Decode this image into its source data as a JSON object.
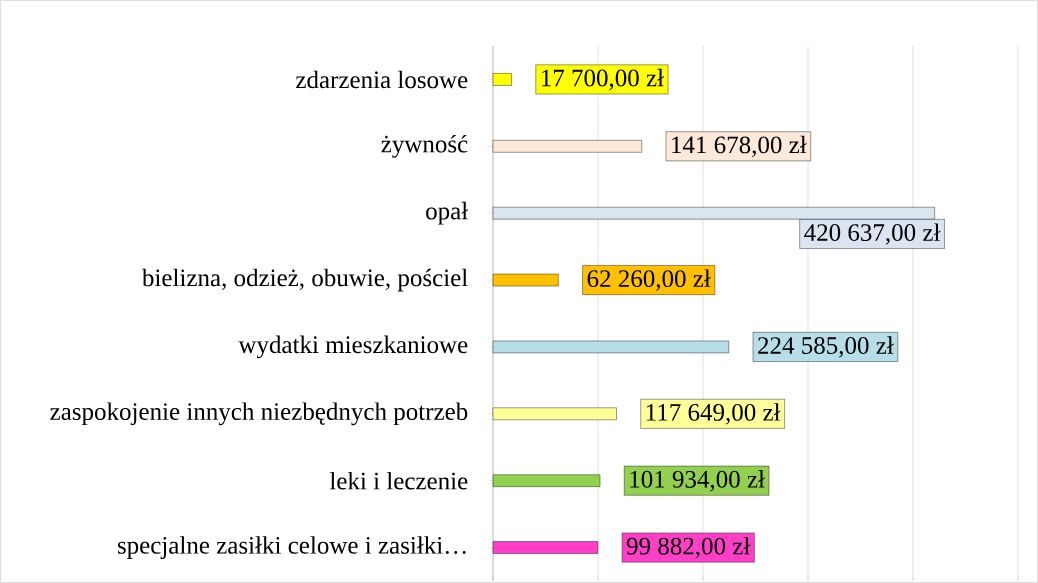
{
  "chart_data": {
    "type": "bar",
    "orientation": "horizontal",
    "categories": [
      "zdarzenia losowe",
      "żywność",
      "opał",
      "bielizna, odzież, obuwie, pościel",
      "wydatki mieszkaniowe",
      "zaspokojenie innych niezbędnych potrzeb",
      "leki i leczenie",
      "specjalne zasiłki celowe i zasiłki…"
    ],
    "values": [
      17700,
      141678,
      420637,
      62260,
      224585,
      117649,
      101934,
      99882
    ],
    "colors": [
      "#ffff00",
      "#fde9d9",
      "#dbe5f1",
      "#ffc000",
      "#b7dee8",
      "#ffff99",
      "#92d050",
      "#ff3fc8"
    ],
    "value_labels": [
      "17 700,00 zł",
      "141 678,00 zł",
      "420 637,00 zł",
      "62 260,00 zł",
      "224 585,00 zł",
      "117 649,00 zł",
      "101 934,00 zł",
      "99 882,00 zł"
    ],
    "xlim": [
      0,
      500000
    ],
    "xticks": [
      {
        "value": 0,
        "label": null
      },
      {
        "value": 100000,
        "label": null
      },
      {
        "value": 200000,
        "label": null
      },
      {
        "value": 300000,
        "label": null
      },
      {
        "value": 400000,
        "label": null
      },
      {
        "value": 500000,
        "label": null
      }
    ],
    "tick_labels": "y",
    "grid": "x"
  }
}
